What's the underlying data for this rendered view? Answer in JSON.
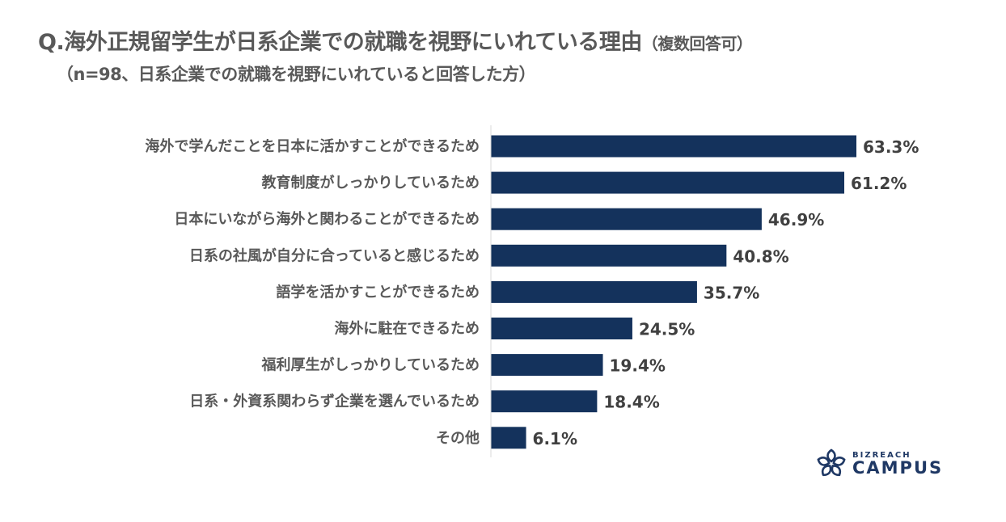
{
  "title": "Q.海外正規留学生が日系企業での就職を視野にいれている理由",
  "title_note": "（複数回答可）",
  "subtitle": "（n=98、日系企業での就職を視野にいれていると回答した方）",
  "logo": {
    "brand_small": "BIZREACH",
    "brand_large": "CAMPUS",
    "icon": "flower-icon"
  },
  "colors": {
    "bar": "#14325c",
    "axis": "#d9d9d9"
  },
  "chart_data": {
    "type": "bar",
    "orientation": "horizontal",
    "title": "Q.海外正規留学生が日系企業での就職を視野にいれている理由（複数回答可）",
    "categories": [
      "海外で学んだことを日本に活かすことができるため",
      "教育制度がしっかりしているため",
      "日本にいながら海外と関わることができるため",
      "日系の社風が自分に合っていると感じるため",
      "語学を活かすことができるため",
      "海外に駐在できるため",
      "福利厚生がしっかりしているため",
      "日系・外資系関わらず企業を選んでいるため",
      "その他"
    ],
    "values": [
      63.3,
      61.2,
      46.9,
      40.8,
      35.7,
      24.5,
      19.4,
      18.4,
      6.1
    ],
    "labels": [
      "63.3%",
      "61.2%",
      "46.9%",
      "40.8%",
      "35.7%",
      "24.5%",
      "19.4%",
      "18.4%",
      "6.1%"
    ],
    "unit": "%",
    "xlim": [
      0,
      100
    ],
    "grid": false,
    "legend": "none"
  }
}
